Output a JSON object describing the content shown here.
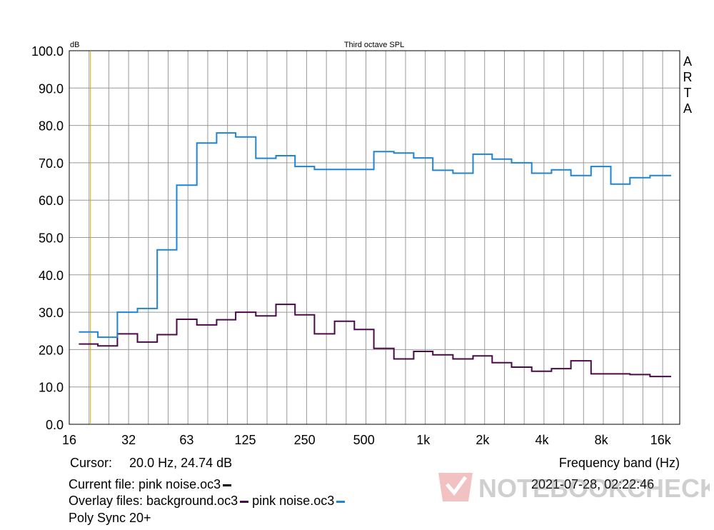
{
  "colors": {
    "background": "#ffffff",
    "grid": "#999999",
    "axes": "#000000",
    "cursor": "#c8b000",
    "series_1": "#1f83d6",
    "series_2": "#4a0a4a"
  },
  "chart_data": {
    "type": "line",
    "title": "Third octave SPL",
    "ylabel": "dB",
    "xlabel": "Frequency band (Hz)",
    "side_label": [
      "A",
      "R",
      "T",
      "A"
    ],
    "ylim": [
      0,
      100
    ],
    "y_ticks": [
      "0.0",
      "10.0",
      "20.0",
      "30.0",
      "40.0",
      "50.0",
      "60.0",
      "70.0",
      "80.0",
      "90.0",
      "100.0"
    ],
    "x_ticks": [
      "16",
      "32",
      "63",
      "125",
      "250",
      "500",
      "1k",
      "2k",
      "4k",
      "8k",
      "16k"
    ],
    "x_bands_hz": [
      20,
      25,
      31.5,
      40,
      50,
      63,
      80,
      100,
      125,
      160,
      200,
      250,
      315,
      400,
      500,
      630,
      800,
      1000,
      1250,
      1600,
      2000,
      2500,
      3150,
      4000,
      5000,
      6300,
      8000,
      10000,
      12500,
      16000
    ],
    "cursor_hz": 20,
    "grid": true,
    "series": [
      {
        "name": "pink noise.oc3",
        "color": "#1f83d6",
        "values": [
          24.7,
          23.3,
          30.0,
          31.0,
          46.7,
          64.0,
          75.3,
          78.0,
          76.9,
          71.2,
          71.9,
          69.0,
          68.2,
          68.2,
          68.2,
          73.0,
          72.6,
          71.3,
          68.0,
          67.2,
          72.3,
          71.0,
          70.0,
          67.2,
          68.1,
          66.6,
          69.0,
          64.3,
          66.0,
          66.6
        ]
      },
      {
        "name": "background.oc3",
        "color": "#4a0a4a",
        "values": [
          21.5,
          21.0,
          24.2,
          22.0,
          24.0,
          28.1,
          26.6,
          28.0,
          30.0,
          29.0,
          32.1,
          29.3,
          24.2,
          27.6,
          25.4,
          20.3,
          17.5,
          19.5,
          18.6,
          17.5,
          18.3,
          16.5,
          15.3,
          14.2,
          14.9,
          17.0,
          13.5,
          13.5,
          13.3,
          12.8
        ]
      }
    ]
  },
  "footer": {
    "cursor_label": "Cursor:",
    "cursor_value": "20.0 Hz, 24.74 dB",
    "current_file": "Current file: pink noise.oc3",
    "overlay_prefix": "Overlay files: background.oc3",
    "overlay_second": "pink noise.oc3",
    "device": "Poly Sync 20+",
    "timestamp": "2021-07-28, 02:22:46"
  },
  "watermark": {
    "text": "NOTEBOOKCHECK",
    "icon": "notebookcheck-logo-icon"
  }
}
